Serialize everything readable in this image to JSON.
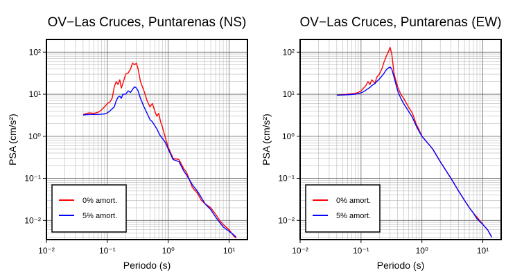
{
  "chart_data": [
    {
      "type": "line",
      "title": "OV−Las Cruces, Puntarenas (NS)",
      "xlabel": "Periodo (s)",
      "ylabel": "PSA (cm/s²)",
      "xscale": "log",
      "yscale": "log",
      "xlim": [
        0.01,
        20
      ],
      "ylim": [
        0.0035,
        200
      ],
      "grid": true,
      "legend_position": "bottom-left",
      "xticks": [
        "10⁻²",
        "10⁻¹",
        "10⁰",
        "10¹"
      ],
      "yticks": [
        "10⁻²",
        "10⁻¹",
        "10⁰",
        "10¹",
        "10²"
      ],
      "series": [
        {
          "name": "0% amort.",
          "color": "#ff0000",
          "x": [
            0.04,
            0.05,
            0.06,
            0.07,
            0.08,
            0.09,
            0.1,
            0.11,
            0.12,
            0.13,
            0.14,
            0.15,
            0.16,
            0.17,
            0.18,
            0.2,
            0.22,
            0.24,
            0.26,
            0.28,
            0.3,
            0.32,
            0.35,
            0.4,
            0.45,
            0.5,
            0.55,
            0.6,
            0.65,
            0.7,
            0.75,
            0.8,
            0.9,
            1.0,
            1.2,
            1.5,
            1.8,
            2.0,
            2.5,
            3.0,
            3.5,
            4.0,
            5.0,
            6.0,
            7.0,
            8.0,
            10.0,
            12.0,
            13.0
          ],
          "y": [
            3.3,
            3.6,
            3.5,
            3.7,
            4.2,
            5.0,
            6.0,
            6.5,
            8.0,
            15.0,
            20.0,
            17.0,
            22.0,
            14.0,
            18.0,
            30.0,
            32.0,
            40.0,
            55.0,
            50.0,
            55.0,
            40.0,
            20.0,
            12.0,
            7.0,
            5.0,
            6.0,
            4.0,
            3.0,
            3.5,
            2.2,
            1.7,
            0.9,
            0.55,
            0.3,
            0.28,
            0.17,
            0.14,
            0.06,
            0.045,
            0.03,
            0.025,
            0.02,
            0.014,
            0.01,
            0.008,
            0.006,
            0.0042,
            0.0038
          ]
        },
        {
          "name": "5% amort.",
          "color": "#0000ff",
          "x": [
            0.04,
            0.05,
            0.06,
            0.07,
            0.08,
            0.09,
            0.1,
            0.11,
            0.12,
            0.13,
            0.14,
            0.15,
            0.16,
            0.17,
            0.18,
            0.2,
            0.22,
            0.24,
            0.26,
            0.28,
            0.3,
            0.32,
            0.35,
            0.4,
            0.45,
            0.5,
            0.55,
            0.6,
            0.65,
            0.7,
            0.75,
            0.8,
            0.9,
            1.0,
            1.2,
            1.5,
            1.8,
            2.0,
            2.5,
            3.0,
            3.5,
            4.0,
            5.0,
            6.0,
            7.0,
            8.0,
            10.0,
            12.0,
            13.0
          ],
          "y": [
            3.2,
            3.3,
            3.3,
            3.3,
            3.35,
            3.4,
            3.6,
            4.0,
            4.5,
            5.0,
            7.0,
            8.5,
            9.0,
            8.0,
            10.0,
            10.0,
            12.0,
            11.0,
            13.0,
            15.0,
            14.0,
            12.0,
            8.0,
            5.0,
            3.5,
            2.5,
            2.2,
            1.8,
            1.5,
            1.2,
            1.0,
            0.9,
            0.7,
            0.5,
            0.28,
            0.25,
            0.15,
            0.12,
            0.07,
            0.05,
            0.035,
            0.025,
            0.018,
            0.012,
            0.009,
            0.007,
            0.0055,
            0.0045,
            0.004
          ]
        }
      ]
    },
    {
      "type": "line",
      "title": "OV−Las Cruces, Puntarenas (EW)",
      "xlabel": "Periodo (s)",
      "ylabel": "PSA (cm/s²)",
      "xscale": "log",
      "yscale": "log",
      "xlim": [
        0.01,
        20
      ],
      "ylim": [
        0.0035,
        200
      ],
      "grid": true,
      "legend_position": "bottom-left",
      "xticks": [
        "10⁻²",
        "10⁻¹",
        "10⁰",
        "10¹"
      ],
      "yticks": [
        "10⁻²",
        "10⁻¹",
        "10⁰",
        "10¹",
        "10²"
      ],
      "series": [
        {
          "name": "0% amort.",
          "color": "#ff0000",
          "x": [
            0.04,
            0.06,
            0.08,
            0.09,
            0.1,
            0.11,
            0.12,
            0.13,
            0.14,
            0.15,
            0.17,
            0.18,
            0.2,
            0.22,
            0.24,
            0.26,
            0.28,
            0.3,
            0.32,
            0.35,
            0.4,
            0.45,
            0.5,
            0.6,
            0.7,
            0.8,
            0.9,
            1.0,
            1.5,
            2.0,
            3.0,
            4.0,
            5.0,
            6.0,
            7.0,
            8.0,
            10.0,
            12.0,
            14.0
          ],
          "y": [
            9.5,
            10.0,
            10.5,
            11.0,
            12.0,
            14.0,
            16.0,
            20.0,
            17.0,
            22.0,
            18.0,
            25.0,
            30.0,
            40.0,
            60.0,
            80.0,
            100.0,
            130.0,
            90.0,
            30.0,
            15.0,
            10.0,
            8.0,
            5.0,
            3.5,
            2.0,
            1.4,
            1.0,
            0.5,
            0.25,
            0.1,
            0.05,
            0.03,
            0.02,
            0.015,
            0.012,
            0.008,
            0.006,
            0.004
          ]
        },
        {
          "name": "5% amort.",
          "color": "#0000ff",
          "x": [
            0.04,
            0.06,
            0.08,
            0.09,
            0.1,
            0.11,
            0.12,
            0.13,
            0.14,
            0.15,
            0.17,
            0.18,
            0.2,
            0.22,
            0.24,
            0.26,
            0.28,
            0.3,
            0.32,
            0.35,
            0.4,
            0.45,
            0.5,
            0.6,
            0.7,
            0.8,
            0.9,
            1.0,
            1.5,
            2.0,
            3.0,
            4.0,
            5.0,
            6.0,
            7.0,
            8.0,
            10.0,
            12.0,
            14.0
          ],
          "y": [
            9.5,
            9.7,
            10.0,
            10.3,
            10.8,
            11.5,
            12.5,
            13.5,
            14.5,
            16.0,
            18.0,
            20.0,
            23.0,
            27.0,
            32.0,
            38.0,
            42.0,
            44.0,
            40.0,
            25.0,
            12.0,
            8.0,
            6.0,
            4.0,
            2.8,
            1.8,
            1.3,
            1.0,
            0.5,
            0.25,
            0.1,
            0.05,
            0.03,
            0.02,
            0.015,
            0.011,
            0.008,
            0.006,
            0.004
          ]
        }
      ]
    }
  ]
}
